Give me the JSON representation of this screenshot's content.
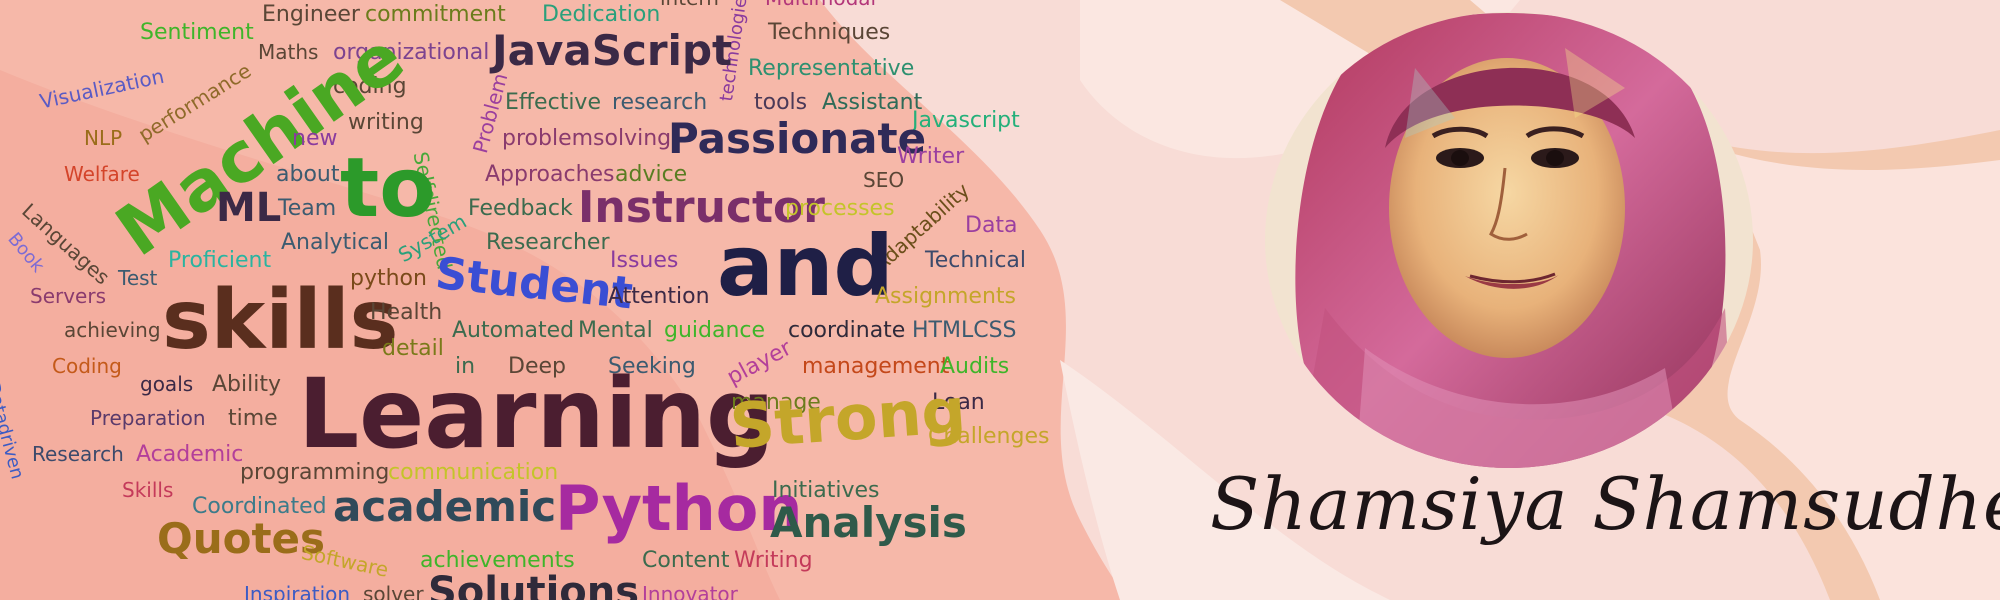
{
  "banner": {
    "name": "Shamsiya Shamsudheen"
  },
  "colors": {
    "background": "#f8dcd6",
    "wave_light": "#fbe7e1",
    "wave_salmon": "#f6b8a9",
    "wave_peach": "#f3c9b0"
  },
  "portrait": {
    "description_icon": "person-portrait"
  },
  "wordcloud": [
    {
      "text": "Engineer",
      "color": "#5a4636",
      "size": 22
    },
    {
      "text": "commitment",
      "color": "#6b7c1c",
      "size": 22
    },
    {
      "text": "Dedication",
      "color": "#2aa07b",
      "size": 22
    },
    {
      "text": "intern",
      "color": "#5a4636",
      "size": 20
    },
    {
      "text": "Multimodal",
      "color": "#b3377a",
      "size": 20
    },
    {
      "text": "Sentiment",
      "color": "#3fb52a",
      "size": 22
    },
    {
      "text": "Techniques",
      "color": "#5a4636",
      "size": 22
    },
    {
      "text": "technologies",
      "color": "#8a3b9e",
      "size": 18
    },
    {
      "text": "Maths",
      "color": "#5a4636",
      "size": 20
    },
    {
      "text": "organizational",
      "color": "#7c4390",
      "size": 22
    },
    {
      "text": "JavaScript",
      "color": "#3b2946",
      "size": 42
    },
    {
      "text": "Representative",
      "color": "#2e9070",
      "size": 22
    },
    {
      "text": "Visualization",
      "color": "#5a5bc4",
      "size": 20
    },
    {
      "text": "performance",
      "color": "#8f6a2a",
      "size": 20
    },
    {
      "text": "coding",
      "color": "#5a4636",
      "size": 22
    },
    {
      "text": "Selfdirected",
      "color": "#48a83a",
      "size": 20
    },
    {
      "text": "Effective",
      "color": "#3c6b4e",
      "size": 22
    },
    {
      "text": "research",
      "color": "#3c5b70",
      "size": 22
    },
    {
      "text": "tools",
      "color": "#4b3a58",
      "size": 22
    },
    {
      "text": "Assistant",
      "color": "#2e6b58",
      "size": 22
    },
    {
      "text": "Machine",
      "color": "#4aa823",
      "size": 70
    },
    {
      "text": "Problem",
      "color": "#9b3f9e",
      "size": 20
    },
    {
      "text": "Javascript",
      "color": "#24b07a",
      "size": 22
    },
    {
      "text": "NLP",
      "color": "#9a6d1a",
      "size": 20
    },
    {
      "text": "writing",
      "color": "#5a4636",
      "size": 22
    },
    {
      "text": "problemsolving",
      "color": "#8a3b6e",
      "size": 22
    },
    {
      "text": "Passionate",
      "color": "#2f2a58",
      "size": 42
    },
    {
      "text": "new",
      "color": "#8a3b9e",
      "size": 22
    },
    {
      "text": "Writer",
      "color": "#9b3fa0",
      "size": 22
    },
    {
      "text": "Welfare",
      "color": "#d4442a",
      "size": 20
    },
    {
      "text": "to",
      "color": "#2c9a2a",
      "size": 82
    },
    {
      "text": "about",
      "color": "#3c5b70",
      "size": 22
    },
    {
      "text": "Approaches",
      "color": "#8a3b6e",
      "size": 22
    },
    {
      "text": "advice",
      "color": "#5a7d22",
      "size": 22
    },
    {
      "text": "SEO",
      "color": "#5a4636",
      "size": 20
    },
    {
      "text": "Languages",
      "color": "#5a4636",
      "size": 20
    },
    {
      "text": "ML",
      "color": "#3b2946",
      "size": 40
    },
    {
      "text": "Team",
      "color": "#3c5b70",
      "size": 22
    },
    {
      "text": "Feedback",
      "color": "#3c6b4e",
      "size": 22
    },
    {
      "text": "Instructor",
      "color": "#7a2f6a",
      "size": 44
    },
    {
      "text": "processes",
      "color": "#c4c42a",
      "size": 22
    },
    {
      "text": "Adaptability",
      "color": "#6b4e1a",
      "size": 20
    },
    {
      "text": "Book",
      "color": "#7c6bd4",
      "size": 18
    },
    {
      "text": "Analytical",
      "color": "#3c5b70",
      "size": 22
    },
    {
      "text": "System",
      "color": "#2aa07b",
      "size": 20
    },
    {
      "text": "Researcher",
      "color": "#3c6b4e",
      "size": 22
    },
    {
      "text": "Data",
      "color": "#9b3fa0",
      "size": 22
    },
    {
      "text": "Proficient",
      "color": "#2ab4a0",
      "size": 22
    },
    {
      "text": "Student",
      "color": "#3a4ed4",
      "size": 44
    },
    {
      "text": "Issues",
      "color": "#8a3b9e",
      "size": 22
    },
    {
      "text": "and",
      "color": "#1f1f46",
      "size": 84
    },
    {
      "text": "Technical",
      "color": "#3c4a6b",
      "size": 22
    },
    {
      "text": "Test",
      "color": "#3c5b70",
      "size": 20
    },
    {
      "text": "python",
      "color": "#7a4a1a",
      "size": 22
    },
    {
      "text": "Attention",
      "color": "#3b2946",
      "size": 22
    },
    {
      "text": "Assignments",
      "color": "#c4a62a",
      "size": 22
    },
    {
      "text": "Servers",
      "color": "#8a3b6e",
      "size": 20
    },
    {
      "text": "skills",
      "color": "#5a2e1e",
      "size": 82
    },
    {
      "text": "Health",
      "color": "#5a4636",
      "size": 22
    },
    {
      "text": "Automated",
      "color": "#3c6b4e",
      "size": 22
    },
    {
      "text": "Mental",
      "color": "#3c6b4e",
      "size": 22
    },
    {
      "text": "guidance",
      "color": "#3fb52a",
      "size": 22
    },
    {
      "text": "coordinate",
      "color": "#2f2a3a",
      "size": 22
    },
    {
      "text": "HTMLCSS",
      "color": "#3c5b70",
      "size": 22
    },
    {
      "text": "Datadriven",
      "color": "#3c5bc4",
      "size": 18
    },
    {
      "text": "achieving",
      "color": "#5a4636",
      "size": 20
    },
    {
      "text": "detail",
      "color": "#7a7a1a",
      "size": 22
    },
    {
      "text": "player",
      "color": "#b33f9a",
      "size": 22
    },
    {
      "text": "Coding",
      "color": "#c45a1a",
      "size": 20
    },
    {
      "text": "in",
      "color": "#3c6b4e",
      "size": 22
    },
    {
      "text": "Deep",
      "color": "#5a4636",
      "size": 22
    },
    {
      "text": "Seeking",
      "color": "#3c5b70",
      "size": 22
    },
    {
      "text": "management",
      "color": "#c4481a",
      "size": 22
    },
    {
      "text": "Audits",
      "color": "#3fb52a",
      "size": 22
    },
    {
      "text": "goals",
      "color": "#3b2946",
      "size": 20
    },
    {
      "text": "Ability",
      "color": "#5a4636",
      "size": 22
    },
    {
      "text": "Learning",
      "color": "#4b1e30",
      "size": 96
    },
    {
      "text": "Loan",
      "color": "#3b2946",
      "size": 22
    },
    {
      "text": "Preparation",
      "color": "#5a3a6b",
      "size": 20
    },
    {
      "text": "time",
      "color": "#5a4636",
      "size": 22
    },
    {
      "text": "manage",
      "color": "#6b7c1c",
      "size": 22
    },
    {
      "text": "Strong",
      "color": "#c4a62a",
      "size": 62
    },
    {
      "text": "Challenges",
      "color": "#c4a62a",
      "size": 22
    },
    {
      "text": "Research",
      "color": "#3c4a6b",
      "size": 20
    },
    {
      "text": "Academic",
      "color": "#b33f9a",
      "size": 22
    },
    {
      "text": "programming",
      "color": "#5a4636",
      "size": 22
    },
    {
      "text": "communication",
      "color": "#c4c42a",
      "size": 22
    },
    {
      "text": "Skills",
      "color": "#c43a5a",
      "size": 20
    },
    {
      "text": "academic",
      "color": "#2f4a5a",
      "size": 42
    },
    {
      "text": "Python",
      "color": "#a62aa0",
      "size": 62
    },
    {
      "text": "Initiatives",
      "color": "#3c6b4e",
      "size": 22
    },
    {
      "text": "Coordinated",
      "color": "#3c7b8a",
      "size": 22
    },
    {
      "text": "Analysis",
      "color": "#2f5a4a",
      "size": 42
    },
    {
      "text": "Quotes",
      "color": "#9a6d1a",
      "size": 42
    },
    {
      "text": "Software",
      "color": "#c4a62a",
      "size": 20
    },
    {
      "text": "achievements",
      "color": "#3fb52a",
      "size": 22
    },
    {
      "text": "Content",
      "color": "#3c6b4e",
      "size": 22
    },
    {
      "text": "Writing",
      "color": "#c43a5a",
      "size": 22
    },
    {
      "text": "Inspiration",
      "color": "#3c5bc4",
      "size": 20
    },
    {
      "text": "solver",
      "color": "#5a4636",
      "size": 20
    },
    {
      "text": "Solutions",
      "color": "#2f2a3a",
      "size": 40
    },
    {
      "text": "Innovator",
      "color": "#b33f9a",
      "size": 20
    }
  ]
}
